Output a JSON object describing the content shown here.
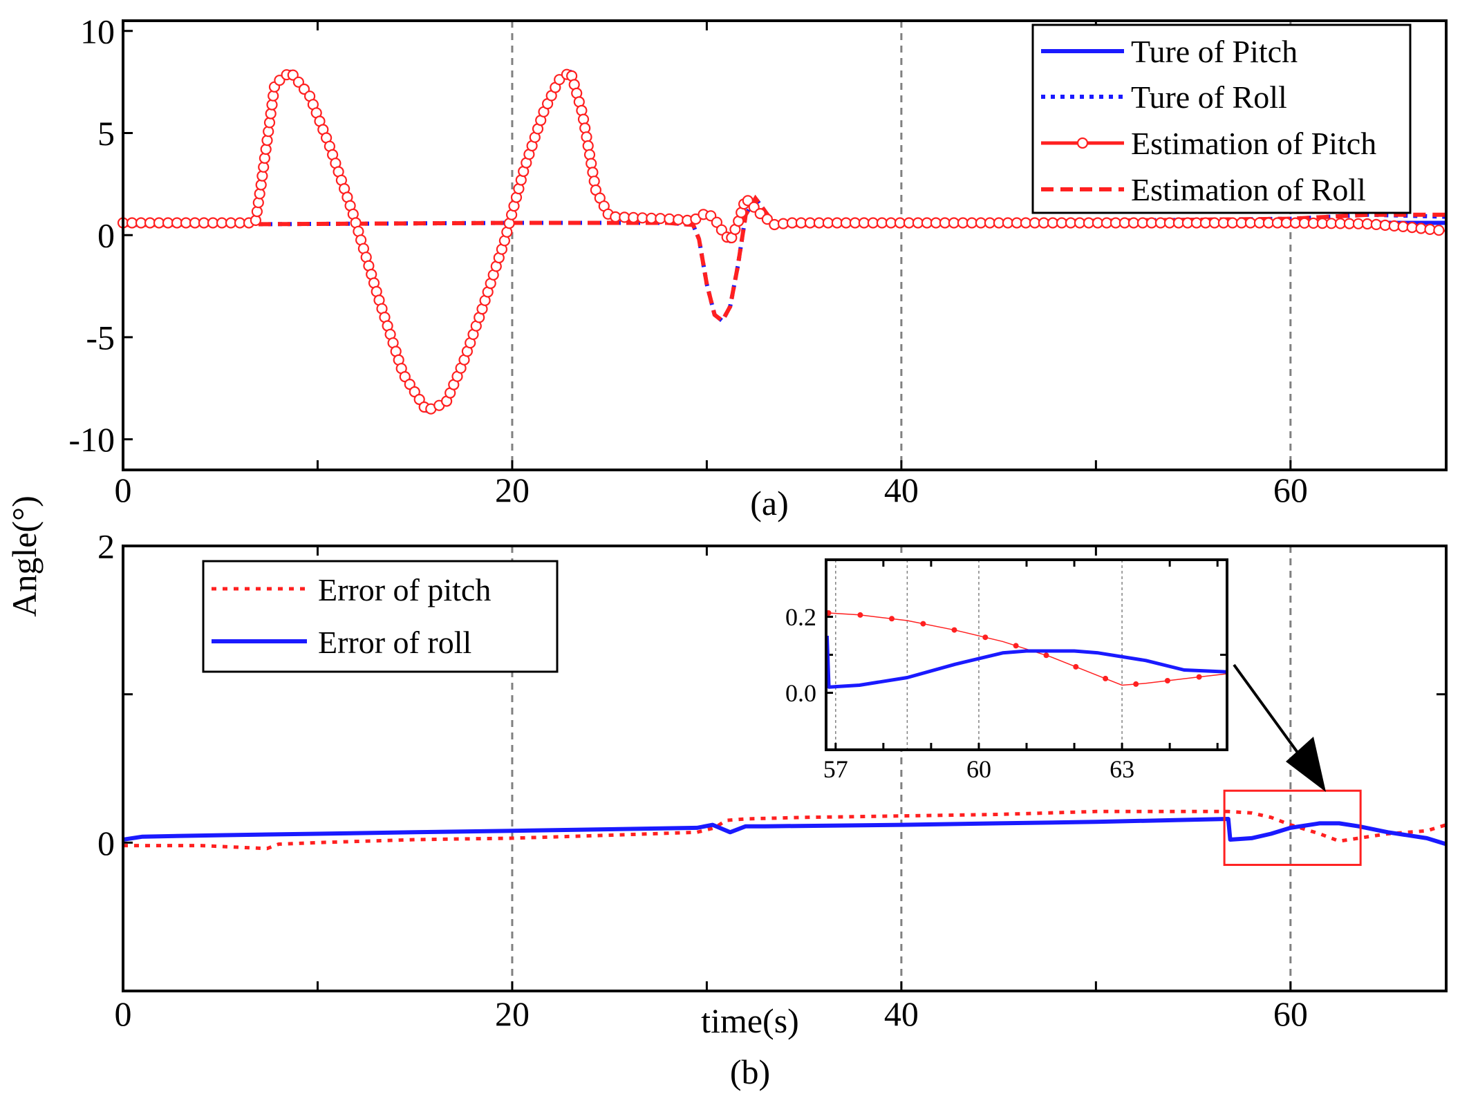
{
  "figure": {
    "ylabel": "Angle(°)",
    "xlabel": "time(s)"
  },
  "colors": {
    "blue": "#1a1aff",
    "red": "#ff2020",
    "grid": "#808080",
    "box": "#ff2020"
  },
  "chart_data": [
    {
      "type": "line",
      "panel_label": "(a)",
      "xlim": [
        0,
        68
      ],
      "ylim": [
        -11.5,
        10.5
      ],
      "xticks": [
        0,
        20,
        40,
        60
      ],
      "xtick_labels": [
        "0",
        "20",
        "40",
        "60"
      ],
      "yticks": [
        10,
        5,
        0,
        -5,
        -10
      ],
      "ytick_labels": [
        "10",
        "5",
        "0",
        "-5",
        "-10"
      ],
      "vgrid": [
        20,
        40,
        60
      ],
      "grid_style": "dashed vertical lines at x = 20, 40, 60",
      "legend": {
        "position": "top-right",
        "entries": [
          "Ture of Pitch",
          "Ture of Roll",
          "Estimation of Pitch",
          "Estimation of Roll"
        ]
      },
      "series": [
        {
          "name": "Ture of Pitch",
          "style": "solid",
          "color": "#1a1aff",
          "x": [
            0,
            6.8,
            7.1,
            7.8,
            8.6,
            9.6,
            10.6,
            11.8,
            13.2,
            14.4,
            15.6,
            16.6,
            17.5,
            18.5,
            19.6,
            20.6,
            21.6,
            22.4,
            23.0,
            23.6,
            24.3,
            25.0,
            28.0,
            29.3,
            29.6,
            30.0,
            30.4,
            30.8,
            31.2,
            31.6,
            32.0,
            32.8,
            33.5,
            34.2,
            40.0,
            50.0,
            60.0,
            64.0,
            68.0
          ],
          "y": [
            0.6,
            0.6,
            2.5,
            7.4,
            8.0,
            6.8,
            4.4,
            1.1,
            -3.3,
            -6.8,
            -8.6,
            -8.2,
            -6.2,
            -3.5,
            -0.3,
            3.2,
            6.0,
            7.6,
            8.0,
            6.0,
            2.2,
            0.9,
            0.8,
            0.7,
            0.9,
            1.1,
            0.8,
            0.2,
            -0.3,
            0.6,
            1.8,
            1.0,
            0.5,
            0.6,
            0.6,
            0.6,
            0.6,
            0.6,
            0.6
          ]
        },
        {
          "name": "Ture of Roll",
          "style": "dotted",
          "color": "#1a1aff",
          "x": [
            0,
            10,
            20,
            28,
            29.3,
            29.6,
            30.0,
            30.4,
            30.8,
            31.2,
            31.6,
            32.0,
            32.5,
            33.2,
            33.8,
            35,
            40,
            50,
            60,
            64,
            68
          ],
          "y": [
            0.5,
            0.55,
            0.6,
            0.6,
            0.5,
            -0.2,
            -2.4,
            -3.9,
            -4.2,
            -3.5,
            -1.5,
            1.0,
            1.8,
            0.9,
            0.5,
            0.5,
            0.6,
            0.7,
            0.8,
            1.0,
            0.9
          ]
        },
        {
          "name": "Estimation of Pitch",
          "style": "solid-circles",
          "color": "#ff2020",
          "x": [
            0,
            6.8,
            7.1,
            7.8,
            8.6,
            9.6,
            10.6,
            11.8,
            13.2,
            14.4,
            15.6,
            16.6,
            17.5,
            18.5,
            19.6,
            20.6,
            21.6,
            22.4,
            23.0,
            23.6,
            24.3,
            25.0,
            28.0,
            29.3,
            29.6,
            30.0,
            30.4,
            30.8,
            31.2,
            31.6,
            32.0,
            32.8,
            33.5,
            34.2,
            40.0,
            50.0,
            60.0,
            64.0,
            66.0,
            68.0
          ],
          "y": [
            0.6,
            0.6,
            2.5,
            7.4,
            8.0,
            6.8,
            4.4,
            1.1,
            -3.3,
            -6.8,
            -8.6,
            -8.2,
            -6.2,
            -3.5,
            -0.3,
            3.2,
            6.0,
            7.6,
            8.0,
            6.0,
            2.2,
            0.9,
            0.8,
            0.7,
            0.9,
            1.1,
            0.8,
            0.2,
            -0.3,
            0.6,
            1.8,
            1.0,
            0.5,
            0.6,
            0.6,
            0.6,
            0.6,
            0.55,
            0.4,
            0.2
          ]
        },
        {
          "name": "Estimation of Roll",
          "style": "dashed",
          "color": "#ff2020",
          "x": [
            0,
            10,
            20,
            28,
            29.3,
            29.6,
            30.0,
            30.4,
            30.8,
            31.2,
            31.6,
            32.0,
            32.5,
            33.2,
            33.8,
            35,
            40,
            50,
            60,
            64,
            68
          ],
          "y": [
            0.5,
            0.55,
            0.6,
            0.6,
            0.5,
            -0.2,
            -2.4,
            -3.9,
            -4.2,
            -3.5,
            -1.5,
            1.0,
            1.8,
            0.9,
            0.5,
            0.5,
            0.6,
            0.7,
            0.8,
            1.0,
            1.0
          ]
        }
      ]
    },
    {
      "type": "line",
      "panel_label": "(b)",
      "xlim": [
        0,
        68
      ],
      "ylim": [
        -1.0,
        2.0
      ],
      "xticks": [
        0,
        20,
        40,
        60
      ],
      "xtick_labels": [
        "0",
        "20",
        "40",
        "60"
      ],
      "yticks": [
        2,
        0
      ],
      "ytick_labels": [
        "2",
        "0"
      ],
      "vgrid": [
        20,
        40,
        60
      ],
      "grid_style": "dashed vertical lines at x = 20, 40, 60",
      "legend": {
        "position": "top-left",
        "entries": [
          "Error of pitch",
          "Error of roll"
        ]
      },
      "zoom_box": {
        "x": [
          56.6,
          63.6
        ],
        "y": [
          -0.15,
          0.35
        ]
      },
      "series": [
        {
          "name": "Error of pitch",
          "style": "dotted",
          "color": "#ff2020",
          "x": [
            0,
            4,
            7.4,
            8.0,
            10,
            15,
            20,
            25,
            29.5,
            30.4,
            31,
            32,
            35,
            40,
            45,
            50,
            56.8,
            58,
            59,
            60,
            61.5,
            62.5,
            63.5,
            65,
            67,
            68
          ],
          "y": [
            -0.02,
            -0.02,
            -0.04,
            -0.01,
            0.0,
            0.02,
            0.03,
            0.05,
            0.07,
            0.1,
            0.15,
            0.16,
            0.17,
            0.18,
            0.19,
            0.21,
            0.21,
            0.2,
            0.17,
            0.12,
            0.06,
            0.01,
            0.03,
            0.06,
            0.08,
            0.12
          ]
        },
        {
          "name": "Error of roll",
          "style": "solid",
          "color": "#1a1aff",
          "x": [
            0,
            1,
            5,
            10,
            15,
            20,
            25,
            29.5,
            30.3,
            31.2,
            32,
            33,
            40,
            45,
            50,
            56.8,
            56.9,
            58,
            59,
            60,
            61.5,
            62.5,
            63.5,
            65,
            67,
            68
          ],
          "y": [
            0.02,
            0.04,
            0.05,
            0.06,
            0.07,
            0.08,
            0.09,
            0.1,
            0.12,
            0.07,
            0.11,
            0.11,
            0.12,
            0.13,
            0.14,
            0.16,
            0.02,
            0.03,
            0.06,
            0.1,
            0.13,
            0.13,
            0.11,
            0.07,
            0.03,
            -0.01
          ]
        }
      ]
    },
    {
      "type": "line",
      "panel_label": "inset",
      "xlim": [
        56.8,
        65.2
      ],
      "ylim": [
        -0.15,
        0.35
      ],
      "xticks": [
        57,
        60,
        63
      ],
      "xtick_labels": [
        "57",
        "60",
        "63"
      ],
      "yticks": [
        0.2,
        0.0
      ],
      "ytick_labels": [
        "0.2",
        "0.0"
      ],
      "vgrid": [
        57,
        58.5,
        60,
        63
      ],
      "series": [
        {
          "name": "Error of pitch",
          "style": "thin-dots",
          "color": "#ff2020",
          "x": [
            56.85,
            57.5,
            58.5,
            59.5,
            60.5,
            61.5,
            62.5,
            63.0,
            63.5,
            64.5,
            65.2
          ],
          "y": [
            0.21,
            0.205,
            0.19,
            0.165,
            0.135,
            0.095,
            0.045,
            0.02,
            0.025,
            0.04,
            0.05
          ]
        },
        {
          "name": "Error of roll",
          "style": "solid",
          "color": "#1a1aff",
          "x": [
            56.82,
            56.86,
            57.5,
            58.5,
            59.5,
            60.5,
            61.0,
            62.0,
            62.5,
            63.5,
            64.3,
            65.2
          ],
          "y": [
            0.15,
            0.015,
            0.02,
            0.04,
            0.075,
            0.105,
            0.11,
            0.11,
            0.105,
            0.085,
            0.06,
            0.055
          ]
        }
      ]
    }
  ]
}
